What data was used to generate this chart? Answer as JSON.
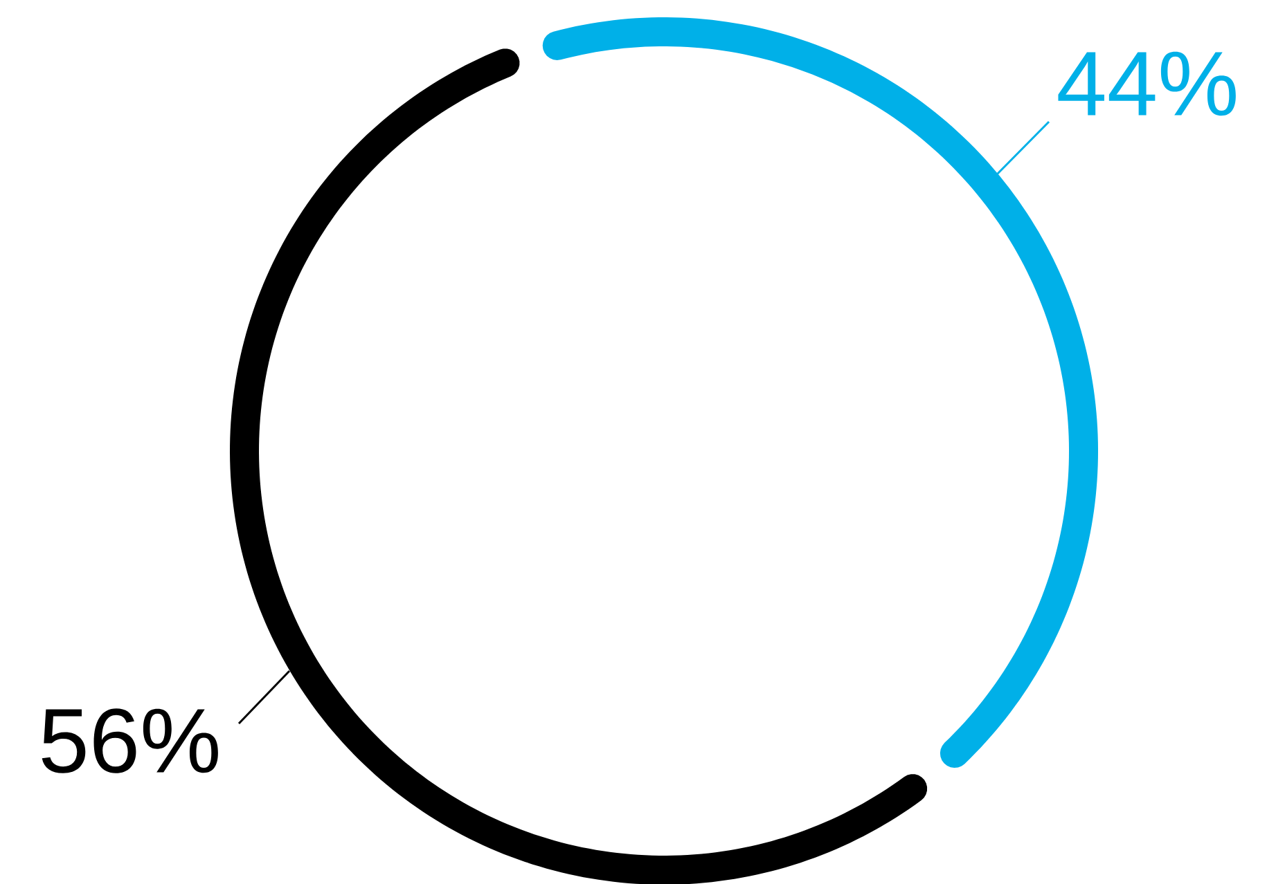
{
  "chart_data": {
    "type": "donut",
    "categories": [
      null,
      null
    ],
    "values": [
      44,
      56
    ],
    "colors": [
      "#00b0e8",
      "#000000"
    ],
    "value_labels": [
      "44%",
      "56%"
    ]
  }
}
